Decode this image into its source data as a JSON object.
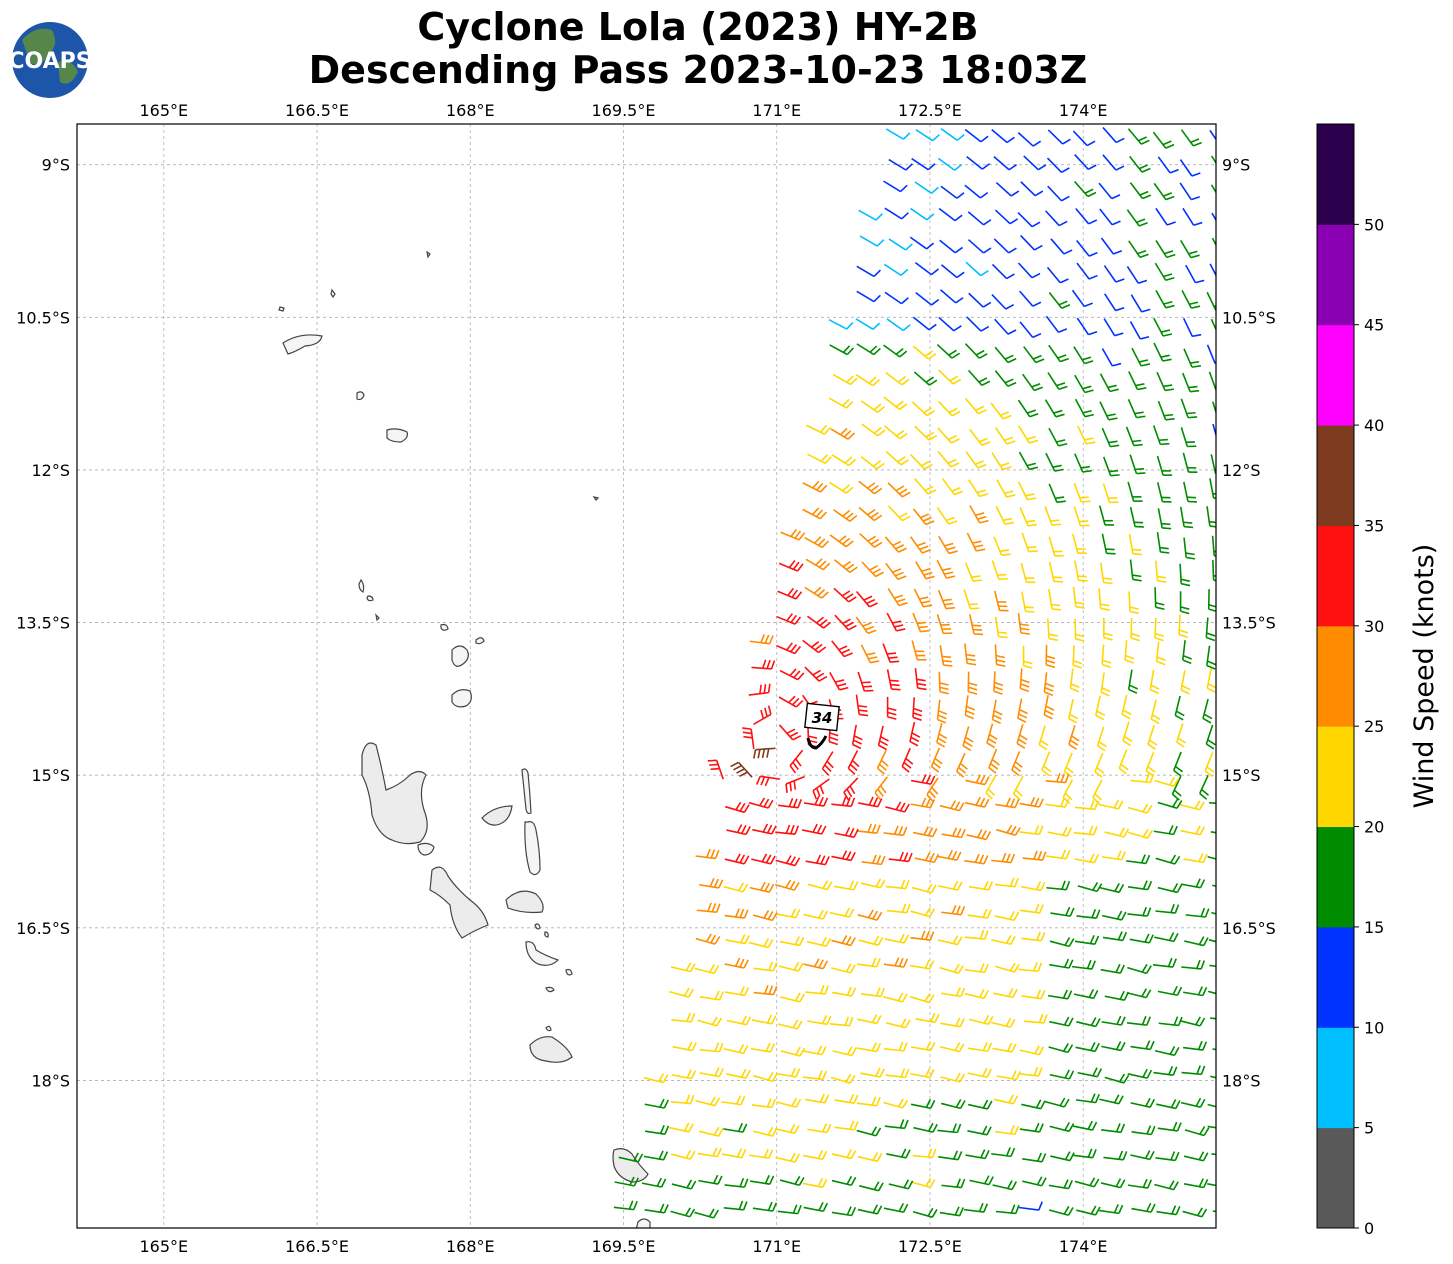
{
  "title": {
    "line1": "Cyclone Lola (2023) HY-2B",
    "line2": "Descending Pass 2023-10-23 18:03Z"
  },
  "logo": {
    "text": "COAPS"
  },
  "map": {
    "lon_range": [
      164.15,
      175.3
    ],
    "lat_range": [
      -19.45,
      -8.6
    ],
    "lon_ticks": [
      "165°E",
      "166.5°E",
      "168°E",
      "169.5°E",
      "171°E",
      "172.5°E",
      "174°E"
    ],
    "lat_ticks": [
      "9°S",
      "10.5°S",
      "12°S",
      "13.5°S",
      "15°S",
      "16.5°S",
      "18°S"
    ],
    "grid": true,
    "land_color": "#ffffff",
    "coastline_color": "#444444"
  },
  "storm_marker": {
    "intensity_label": "34",
    "lon": 170.95,
    "lat": -14.65
  },
  "colorbar": {
    "label": "Wind Speed (knots)",
    "tick_labels": [
      "0",
      "5",
      "10",
      "15",
      "20",
      "25",
      "30",
      "35",
      "40",
      "45",
      "50"
    ],
    "colors": [
      "#595959",
      "#00bfff",
      "#0033ff",
      "#008c00",
      "#ffd700",
      "#ff8c00",
      "#ff1111",
      "#7f3b1f",
      "#ff00ff",
      "#8a00b3",
      "#2b004d"
    ]
  }
}
